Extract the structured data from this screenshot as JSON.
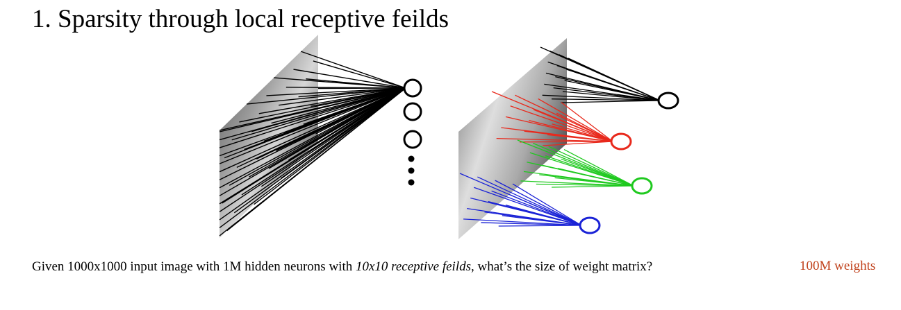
{
  "slide": {
    "title": "1. Sparsity through local receptive feilds",
    "caption_before": "Given 1000x1000 input image with 1M hidden neurons with ",
    "caption_italic": "10x10 receptive feilds",
    "caption_after": ", what’s the size of weight matrix?",
    "answer": "100M weights"
  },
  "colors": {
    "answer": "#c0401a",
    "neuron_black": "#000000",
    "neuron_red": "#e8291c",
    "neuron_green": "#1fc91f",
    "neuron_blue": "#1a22d6"
  },
  "diagrams": {
    "fully_connected": {
      "hidden_neurons_shown": 3,
      "ellipsis_dots": 3,
      "neuron_color": "black"
    },
    "locally_connected": {
      "neurons": [
        {
          "color": "black",
          "field": "top"
        },
        {
          "color": "red",
          "field": "upper"
        },
        {
          "color": "green",
          "field": "middle"
        },
        {
          "color": "blue",
          "field": "bottom"
        }
      ]
    }
  }
}
